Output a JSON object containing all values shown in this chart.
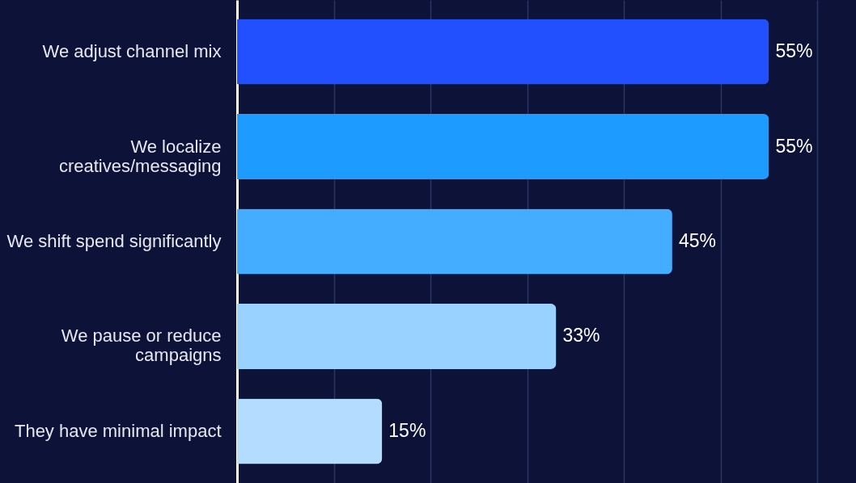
{
  "chart_data": {
    "type": "bar",
    "orientation": "horizontal",
    "categories": [
      "We adjust channel mix",
      "We localize creatives/messaging",
      "We shift spend significantly",
      "We pause or reduce campaigns",
      "They have minimal impact"
    ],
    "values": [
      55,
      55,
      45,
      33,
      15
    ],
    "value_labels": [
      "55%",
      "55%",
      "45%",
      "33%",
      "15%"
    ],
    "colors": [
      "#2350ff",
      "#1e9bff",
      "#45adff",
      "#99d1ff",
      "#b3dcff"
    ],
    "xlim": [
      0,
      64
    ],
    "xticks": [
      {
        "value": 10,
        "label": null
      },
      {
        "value": 20,
        "label": null
      },
      {
        "value": 30,
        "label": null
      },
      {
        "value": 40,
        "label": null
      },
      {
        "value": 50,
        "label": null
      },
      {
        "value": 60,
        "label": null
      }
    ],
    "grid": "x",
    "tick_labels": "y"
  }
}
